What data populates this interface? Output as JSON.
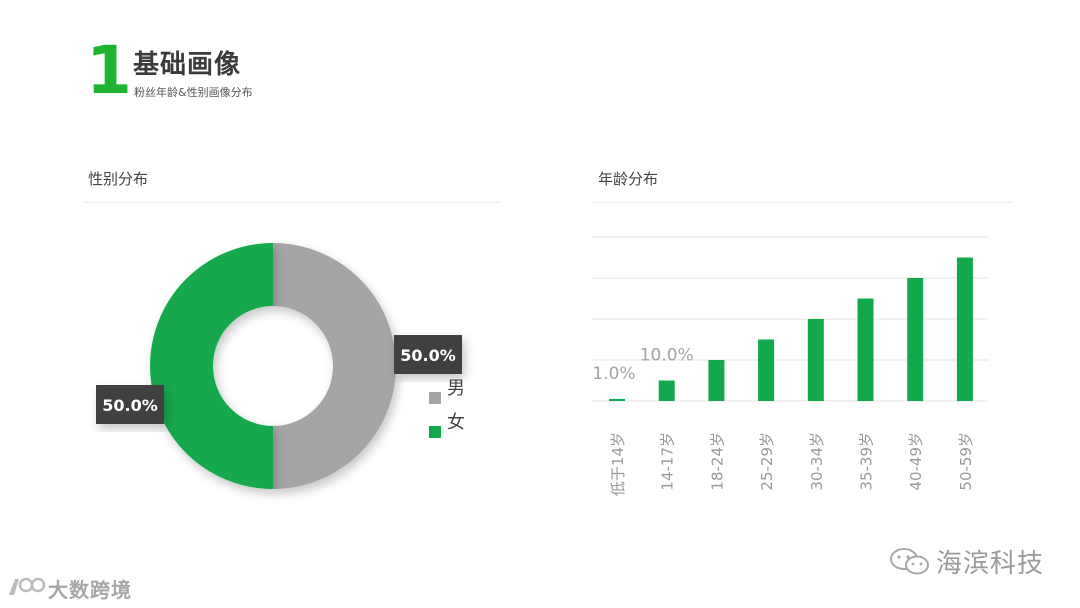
{
  "header": {
    "number": "1",
    "title": "基础画像",
    "subtitle": "粉丝年龄&性别画像分布"
  },
  "gender_panel": {
    "title": "性别分布"
  },
  "age_panel": {
    "title": "年龄分布"
  },
  "watermarks": {
    "right": "海滨科技",
    "left": "大数跨境"
  },
  "colors": {
    "accent_green": "#1db52f",
    "bar_green": "#12a94c",
    "male_gray": "#a5a5a5",
    "label_dark": "#3f3f3f"
  },
  "chart_data": [
    {
      "type": "pie",
      "variant": "donut",
      "categories": [
        "男",
        "女"
      ],
      "values": [
        50.0,
        50.0
      ],
      "data_labels": [
        "50.0%",
        "50.0%"
      ],
      "colors": [
        "#a5a5a5",
        "#12a94c"
      ],
      "legend": "right"
    },
    {
      "type": "bar",
      "categories": [
        "低于14岁",
        "14-17岁",
        "18-24岁",
        "25-29岁",
        "30-34岁",
        "35-39岁",
        "40-49岁",
        "50-59岁"
      ],
      "values": [
        1.0,
        10.0,
        20.0,
        30.0,
        40.0,
        50.0,
        60.0,
        70.0
      ],
      "data_labels": [
        "1.0%",
        "10.0%",
        "",
        "",
        "",
        "",
        "",
        ""
      ],
      "ylim": [
        0,
        80
      ],
      "grid": true,
      "color": "#12a94c"
    }
  ]
}
